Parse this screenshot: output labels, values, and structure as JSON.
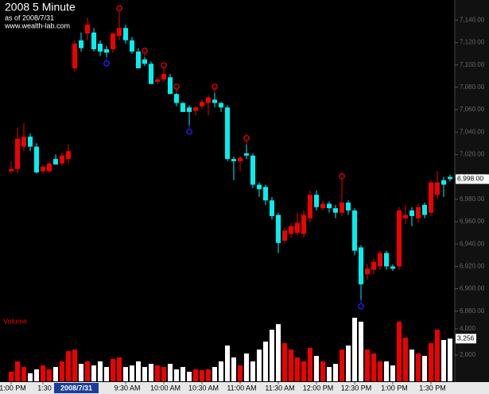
{
  "chart_data": {
    "type": "candlestick",
    "title": "2008 5 Minute",
    "subtitle": "as of 2008/7/31",
    "source": "www.wealth-lab.com",
    "open": [
      7005,
      7007,
      7027,
      7036,
      7027,
      7005,
      7005,
      7016,
      7012,
      7016,
      7097,
      7122,
      7128,
      7129,
      7119,
      7114,
      7114,
      7126,
      7133,
      7122,
      7112,
      7105,
      7101,
      7085,
      7087,
      7089,
      7074,
      7066,
      7062,
      7059,
      7063,
      7066,
      7069,
      7066,
      7062,
      7016,
      7014,
      7021,
      7019,
      6993,
      6991,
      6979,
      6966,
      6943,
      6949,
      6950,
      6949,
      6963,
      6984,
      6972,
      6976,
      6972,
      6968,
      6977,
      6970,
      6937,
      6913,
      6917,
      6920,
      6932,
      6920,
      6920,
      6963,
      6970,
      6963,
      6975,
      6968,
      6984,
      6997,
      7000
    ],
    "high": [
      7014,
      7044,
      7048,
      7039,
      7030,
      7011,
      7014,
      7020,
      7022,
      7029,
      7122,
      7129,
      7142,
      7133,
      7122,
      7117,
      7129,
      7145,
      7136,
      7125,
      7115,
      7107,
      7103,
      7089,
      7094,
      7092,
      7075,
      7067,
      7064,
      7063,
      7069,
      7073,
      7075,
      7067,
      7064,
      7018,
      7019,
      7029,
      7021,
      6995,
      6993,
      6982,
      6968,
      6955,
      6959,
      6968,
      6970,
      6988,
      6988,
      6979,
      6978,
      6975,
      6995,
      6979,
      6972,
      6939,
      6922,
      6927,
      6934,
      6934,
      6922,
      6973,
      6975,
      6973,
      6976,
      6977,
      6997,
      7005,
      7000,
      7002
    ],
    "low": [
      7003,
      7003,
      7023,
      7023,
      7003,
      7003,
      7003,
      7011,
      7010,
      7012,
      7094,
      7112,
      7122,
      7112,
      7108,
      7107,
      7111,
      7122,
      7119,
      7110,
      7097,
      7099,
      7083,
      7083,
      7085,
      7074,
      7063,
      7058,
      7046,
      7055,
      7061,
      7055,
      7062,
      7058,
      7014,
      6997,
      7005,
      7016,
      6990,
      6982,
      6975,
      6962,
      6932,
      6941,
      6946,
      6948,
      6946,
      6959,
      6970,
      6970,
      6968,
      6963,
      6965,
      6966,
      6930,
      6890,
      6908,
      6913,
      6917,
      6917,
      6916,
      6917,
      6958,
      6956,
      6959,
      6963,
      6965,
      6980,
      6982,
      6996
    ],
    "close": [
      7007,
      7034,
      7036,
      7027,
      7004,
      7009,
      7012,
      7011,
      7019,
      7023,
      7119,
      7115,
      7136,
      7114,
      7112,
      7111,
      7128,
      7133,
      7122,
      7112,
      7097,
      7101,
      7083,
      7087,
      7092,
      7074,
      7066,
      7058,
      7058,
      7062,
      7067,
      7071,
      7066,
      7062,
      7016,
      7014,
      7017,
      7019,
      6993,
      6989,
      6979,
      6965,
      6941,
      6952,
      6956,
      6959,
      6966,
      6984,
      6973,
      6976,
      6972,
      6968,
      6977,
      6970,
      6934,
      6904,
      6918,
      6924,
      6932,
      6920,
      6918,
      6970,
      6966,
      6965,
      6973,
      6966,
      6995,
      6995,
      6993,
      6998
    ],
    "volume": [
      730,
      1520,
      1090,
      610,
      910,
      1210,
      910,
      1090,
      1520,
      2300,
      2420,
      1330,
      1520,
      1210,
      1520,
      1090,
      1700,
      1820,
      1090,
      1210,
      1520,
      1090,
      1330,
      1210,
      1090,
      1330,
      910,
      1090,
      730,
      910,
      850,
      910,
      1090,
      1520,
      2730,
      1820,
      1210,
      2120,
      1520,
      2420,
      3030,
      3940,
      4360,
      2910,
      2420,
      1820,
      1520,
      2550,
      1940,
      1520,
      1090,
      1330,
      2420,
      2730,
      4850,
      4550,
      2420,
      2120,
      1520,
      1520,
      1210,
      4550,
      3330,
      2420,
      2120,
      1940,
      2910,
      3940,
      3150,
      3256
    ],
    "last_price_label": "6,998.00",
    "last_volume_label": "3,256",
    "volume_label": "Volume",
    "up_color": "#ee0000",
    "down_color": "#00f0f0",
    "volume_up_color": "#ee0000",
    "volume_down_color": "#ffffff",
    "peak_markers": [
      17,
      21,
      24,
      26,
      32,
      37,
      52
    ],
    "trough_markers": [
      15,
      28,
      55
    ],
    "ylim": [
      6877,
      7158
    ],
    "yticks": [
      {
        "value": 6880,
        "label": "6,880.00"
      },
      {
        "value": 6900,
        "label": "6,900.00"
      },
      {
        "value": 6920,
        "label": "6,920.00"
      },
      {
        "value": 6940,
        "label": "6,940.00"
      },
      {
        "value": 6960,
        "label": "6,960.00"
      },
      {
        "value": 6980,
        "label": "6,980.00"
      },
      {
        "value": 7000,
        "label": "7,000.00"
      },
      {
        "value": 7020,
        "label": "7,020.00"
      },
      {
        "value": 7040,
        "label": "7,040.00"
      },
      {
        "value": 7060,
        "label": "7,060.00"
      },
      {
        "value": 7080,
        "label": "7,080.00"
      },
      {
        "value": 7100,
        "label": "7,100.00"
      },
      {
        "value": 7120,
        "label": "7,120.00"
      },
      {
        "value": 7140,
        "label": "7,140.00"
      }
    ],
    "vlim": [
      0,
      4850
    ],
    "vticks": [
      {
        "value": 2000,
        "label": "2,000"
      },
      {
        "value": 4000,
        "label": "4,000"
      }
    ],
    "xticks": [
      {
        "value": 0,
        "label": "1:00 PM"
      },
      {
        "value": 5,
        "label": "1:30"
      },
      {
        "value": 10,
        "label": "2008/7/31"
      },
      {
        "value": 18,
        "label": "9:30 AM"
      },
      {
        "value": 24,
        "label": "10:00 AM"
      },
      {
        "value": 30,
        "label": "10:30 AM"
      },
      {
        "value": 36,
        "label": "11:00 AM"
      },
      {
        "value": 42,
        "label": "11:30 AM"
      },
      {
        "value": 48,
        "label": "12:00 PM"
      },
      {
        "value": 54,
        "label": "12:30 PM"
      },
      {
        "value": 60,
        "label": "1:00 PM"
      },
      {
        "value": 66,
        "label": "1:30 PM"
      }
    ],
    "day_tick": 2
  }
}
